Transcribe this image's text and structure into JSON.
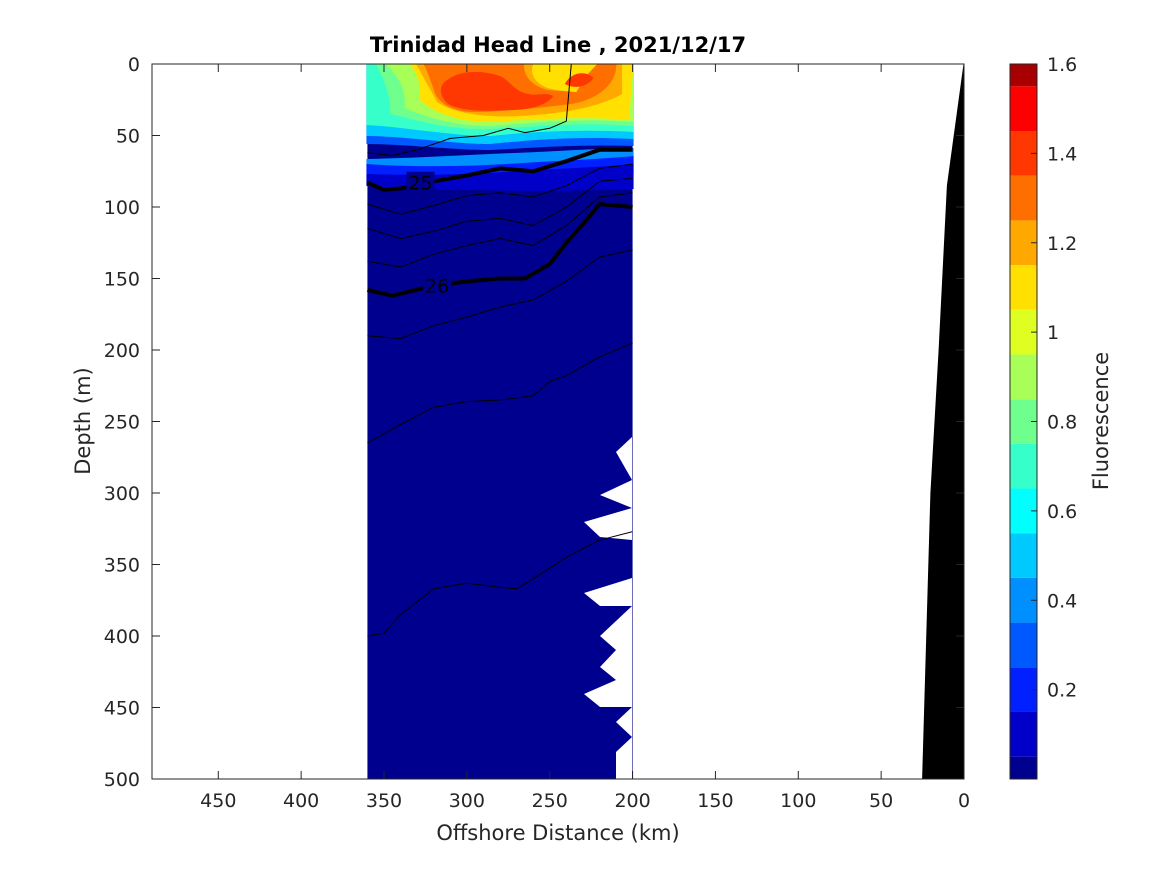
{
  "chart_data": {
    "type": "contour",
    "title": "Trinidad Head Line , 2021/12/17",
    "xlabel": "Offshore Distance (km)",
    "ylabel": "Depth (m)",
    "colorbar_label": "Fluorescence",
    "xlim": [
      490,
      0
    ],
    "ylim": [
      0,
      500
    ],
    "x_reversed": true,
    "y_reversed": true,
    "xticks": [
      450,
      400,
      350,
      300,
      250,
      200,
      150,
      100,
      50,
      0
    ],
    "yticks": [
      0,
      50,
      100,
      150,
      200,
      250,
      300,
      350,
      400,
      450,
      500
    ],
    "colorbar_ticks": [
      0.2,
      0.4,
      0.6,
      0.8,
      1,
      1.2,
      1.4,
      1.6
    ],
    "colorbar_range": [
      0,
      1.6
    ],
    "colormap": [
      "#00008f",
      "#0000c9",
      "#0020ff",
      "#0058ff",
      "#008fff",
      "#00c9ff",
      "#00ffff",
      "#37ffc9",
      "#6fff8f",
      "#a8ff58",
      "#dfff20",
      "#ffe000",
      "#ffa800",
      "#ff6f00",
      "#ff3700",
      "#ff0000",
      "#a80000"
    ],
    "data_extent": {
      "x": [
        360,
        200
      ],
      "depth": [
        0,
        500
      ]
    },
    "contour_labels": [
      {
        "text": "25",
        "x": 328,
        "depth": 83
      },
      {
        "text": "26",
        "x": 318,
        "depth": 155
      }
    ],
    "density_contours": [
      {
        "bold": false,
        "x": [
          360,
          345,
          330,
          310,
          290,
          275,
          265,
          250,
          240,
          237
        ],
        "depth": [
          62,
          64,
          60,
          52,
          50,
          45,
          48,
          45,
          40,
          0
        ]
      },
      {
        "bold": true,
        "label": "25",
        "x": [
          360,
          350,
          340,
          320,
          300,
          280,
          260,
          240,
          220,
          200
        ],
        "depth": [
          83,
          88,
          87,
          82,
          78,
          73,
          75,
          68,
          60,
          60
        ]
      },
      {
        "bold": false,
        "x": [
          360,
          340,
          320,
          300,
          280,
          260,
          240,
          220,
          200
        ],
        "depth": [
          98,
          105,
          99,
          92,
          90,
          93,
          85,
          73,
          70
        ]
      },
      {
        "bold": false,
        "x": [
          360,
          340,
          320,
          300,
          280,
          260,
          240,
          220,
          200
        ],
        "depth": [
          115,
          122,
          117,
          110,
          108,
          113,
          100,
          82,
          80
        ]
      },
      {
        "bold": false,
        "x": [
          360,
          340,
          320,
          300,
          280,
          260,
          240,
          220,
          200
        ],
        "depth": [
          138,
          142,
          133,
          127,
          122,
          127,
          113,
          93,
          90
        ]
      },
      {
        "bold": true,
        "label": "26",
        "x": [
          360,
          345,
          320,
          300,
          280,
          265,
          250,
          240,
          230,
          220,
          200
        ],
        "depth": [
          158,
          162,
          155,
          152,
          150,
          150,
          140,
          125,
          112,
          98,
          100
        ]
      },
      {
        "bold": false,
        "x": [
          360,
          340,
          320,
          300,
          280,
          260,
          240,
          220,
          200
        ],
        "depth": [
          190,
          192,
          183,
          177,
          170,
          165,
          152,
          135,
          130
        ]
      },
      {
        "bold": false,
        "x": [
          360,
          340,
          320,
          300,
          280,
          260,
          250,
          240,
          220,
          200
        ],
        "depth": [
          265,
          252,
          240,
          236,
          235,
          232,
          222,
          218,
          205,
          195
        ]
      },
      {
        "bold": false,
        "x": [
          360,
          350,
          340,
          320,
          300,
          280,
          270,
          260,
          240,
          220,
          200
        ],
        "depth": [
          400,
          398,
          385,
          367,
          363,
          366,
          367,
          360,
          345,
          333,
          327
        ]
      }
    ],
    "bathymetry": {
      "color": "#000000",
      "x": [
        0,
        10,
        15,
        20,
        25
      ],
      "depth": [
        0,
        85,
        200,
        300,
        500
      ]
    }
  }
}
